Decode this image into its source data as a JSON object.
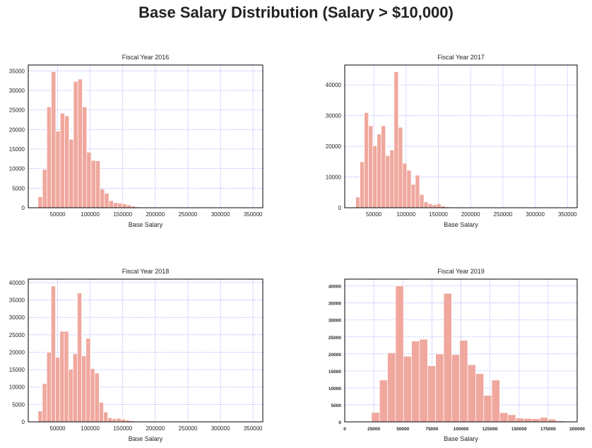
{
  "figure": {
    "title": "Base Salary Distribution (Salary > $10,000)"
  },
  "style": {
    "bar_color": "#f0a89e",
    "grid_color": "#0000ff",
    "frame_color": "#000000"
  },
  "chart_data": [
    {
      "type": "bar",
      "title": "Fiscal Year 2016",
      "xlabel": "Base Salary",
      "ylabel": "",
      "xlim": [
        5000,
        365000
      ],
      "ylim": [
        0,
        36500
      ],
      "xticks": [
        50000,
        100000,
        150000,
        200000,
        250000,
        300000,
        350000
      ],
      "xtick_labels": [
        "50000",
        "100000",
        "150000",
        "200000",
        "250000",
        "300000",
        "350000"
      ],
      "yticks": [
        0,
        5000,
        10000,
        15000,
        20000,
        25000,
        30000,
        35000
      ],
      "ytick_labels": [
        "0",
        "5000",
        "10000",
        "15000",
        "20000",
        "25000",
        "30000",
        "35000"
      ],
      "bin_width": 6800,
      "bin_start": 20000,
      "values": [
        2800,
        9800,
        25800,
        34800,
        19600,
        24200,
        23500,
        17500,
        32300,
        32900,
        25800,
        14200,
        12100,
        12000,
        4800,
        3700,
        1800,
        1300,
        1200,
        1000,
        700,
        400,
        200,
        150,
        100,
        80,
        60,
        50,
        40,
        30,
        20,
        20,
        10,
        10,
        10,
        10,
        10,
        10,
        10,
        10,
        10,
        10,
        10,
        10,
        10,
        10,
        10,
        10,
        10,
        10
      ],
      "grid": true
    },
    {
      "type": "bar",
      "title": "Fiscal Year 2017",
      "xlabel": "Base Salary",
      "ylabel": "",
      "xlim": [
        5000,
        365000
      ],
      "ylim": [
        0,
        46500
      ],
      "xticks": [
        50000,
        100000,
        150000,
        200000,
        250000,
        300000,
        350000
      ],
      "xtick_labels": [
        "50000",
        "100000",
        "150000",
        "200000",
        "250000",
        "300000",
        "350000"
      ],
      "yticks": [
        0,
        10000,
        20000,
        30000,
        40000
      ],
      "ytick_labels": [
        "0",
        "10000",
        "20000",
        "30000",
        "40000"
      ],
      "bin_width": 6600,
      "bin_start": 22000,
      "values": [
        3500,
        15000,
        31000,
        26700,
        20200,
        24000,
        26700,
        17000,
        18800,
        44300,
        26200,
        14500,
        12200,
        7600,
        10600,
        4300,
        1900,
        1300,
        1000,
        1300,
        600,
        300,
        200,
        100,
        80,
        60,
        50,
        40,
        30,
        20,
        20,
        10,
        10,
        10,
        10,
        10,
        10,
        10,
        10,
        10,
        10,
        10,
        10,
        10,
        10,
        10,
        10,
        10,
        10,
        10
      ],
      "grid": true
    },
    {
      "type": "bar",
      "title": "Fiscal Year 2018",
      "xlabel": "Base Salary",
      "ylabel": "",
      "xlim": [
        5000,
        365000
      ],
      "ylim": [
        0,
        41000
      ],
      "xticks": [
        50000,
        100000,
        150000,
        200000,
        250000,
        300000,
        350000
      ],
      "xtick_labels": [
        "50000",
        "100000",
        "150000",
        "200000",
        "250000",
        "300000",
        "350000"
      ],
      "yticks": [
        0,
        5000,
        10000,
        15000,
        20000,
        25000,
        30000,
        35000,
        40000
      ],
      "ytick_labels": [
        "0",
        "5000",
        "10000",
        "15000",
        "20000",
        "25000",
        "30000",
        "35000",
        "40000"
      ],
      "bin_width": 6700,
      "bin_start": 20000,
      "values": [
        3100,
        11000,
        20000,
        39000,
        18600,
        26000,
        26000,
        15100,
        19600,
        37000,
        19000,
        24000,
        15300,
        14000,
        5600,
        2800,
        1200,
        900,
        1000,
        800,
        500,
        300,
        200,
        120,
        80,
        60,
        50,
        40,
        30,
        20,
        20,
        10,
        10,
        10,
        10,
        10,
        10,
        10,
        10,
        10,
        10,
        10,
        10,
        10,
        10,
        10,
        10,
        10,
        10,
        10
      ],
      "grid": true
    },
    {
      "type": "bar",
      "title": "Fiscal Year 2019",
      "xlabel": "Base Salary",
      "ylabel": "",
      "xlim": [
        0,
        200000
      ],
      "ylim": [
        0,
        42000
      ],
      "xticks": [
        0,
        25000,
        50000,
        75000,
        100000,
        125000,
        150000,
        175000,
        200000
      ],
      "xtick_labels": [
        "0",
        "25000",
        "50000",
        "75000",
        "100000",
        "125000",
        "150000",
        "175000",
        "200000"
      ],
      "yticks": [
        0,
        5000,
        10000,
        15000,
        20000,
        25000,
        30000,
        35000,
        40000
      ],
      "ytick_labels": [
        "0",
        "5000",
        "10000",
        "15000",
        "20000",
        "25000",
        "30000",
        "35000",
        "40000"
      ],
      "bin_width": 6900,
      "bin_start": 23000,
      "values": [
        2800,
        12300,
        20300,
        40000,
        19300,
        23800,
        24300,
        16500,
        20000,
        37800,
        19800,
        24000,
        16800,
        14200,
        7800,
        12300,
        2700,
        2100,
        1100,
        1000,
        900,
        1300,
        800,
        300,
        200
      ],
      "grid": true
    }
  ]
}
